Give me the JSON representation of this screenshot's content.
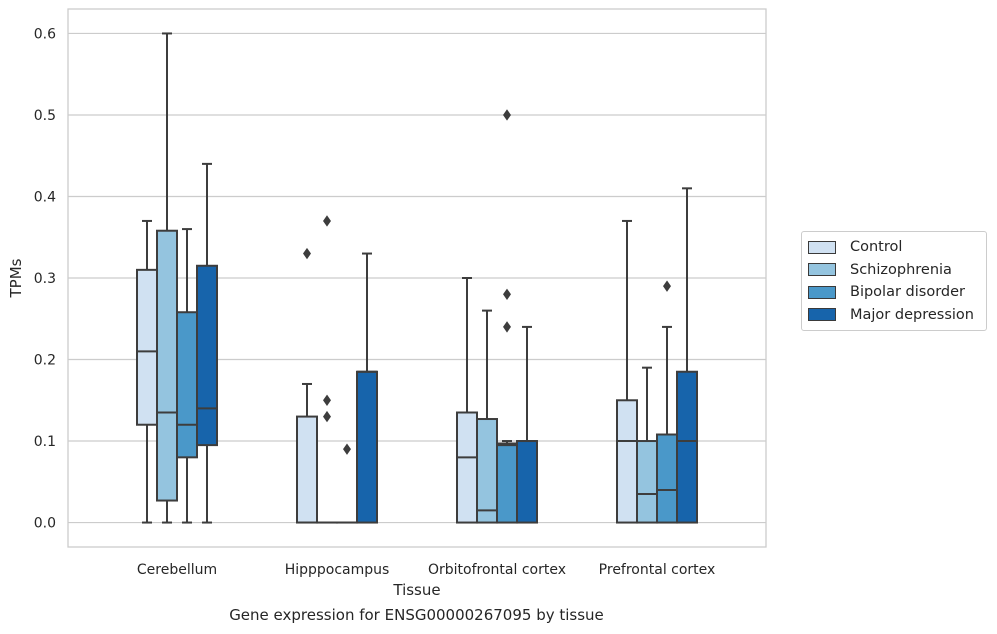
{
  "caption": "Gene expression for ENSG00000267095 by tissue",
  "chart_data": {
    "type": "box",
    "xlabel": "Tissue",
    "ylabel": "TPMs",
    "ylim": [
      -0.03,
      0.63
    ],
    "yticks": [
      0.0,
      0.1,
      0.2,
      0.3,
      0.4,
      0.5,
      0.6
    ],
    "ytick_labels": [
      "0.0",
      "0.1",
      "0.2",
      "0.3",
      "0.4",
      "0.5",
      "0.6"
    ],
    "grid": "horizontal",
    "legend_position": "right-outside",
    "categories": [
      "Cerebellum",
      "Hipppocampus",
      "Orbitofrontal cortex",
      "Prefrontal cortex"
    ],
    "series": [
      {
        "name": "Control",
        "color": "#d0e1f2",
        "boxes": [
          {
            "q1": 0.12,
            "median": 0.21,
            "q3": 0.31,
            "whisker_low": 0.0,
            "whisker_high": 0.37,
            "outliers": []
          },
          {
            "q1": 0.0,
            "median": 0.0,
            "q3": 0.13,
            "whisker_low": 0.0,
            "whisker_high": 0.17,
            "outliers": [
              0.33
            ]
          },
          {
            "q1": 0.0,
            "median": 0.08,
            "q3": 0.135,
            "whisker_low": 0.0,
            "whisker_high": 0.3,
            "outliers": []
          },
          {
            "q1": 0.0,
            "median": 0.1,
            "q3": 0.15,
            "whisker_low": 0.0,
            "whisker_high": 0.37,
            "outliers": []
          }
        ]
      },
      {
        "name": "Schizophrenia",
        "color": "#94c4df",
        "boxes": [
          {
            "q1": 0.027,
            "median": 0.135,
            "q3": 0.358,
            "whisker_low": 0.0,
            "whisker_high": 0.6,
            "outliers": []
          },
          {
            "q1": 0.0,
            "median": 0.0,
            "q3": 0.0,
            "whisker_low": 0.0,
            "whisker_high": 0.0,
            "outliers": [
              0.37,
              0.15,
              0.13
            ]
          },
          {
            "q1": 0.0,
            "median": 0.015,
            "q3": 0.127,
            "whisker_low": 0.0,
            "whisker_high": 0.26,
            "outliers": []
          },
          {
            "q1": 0.0,
            "median": 0.035,
            "q3": 0.1,
            "whisker_low": 0.0,
            "whisker_high": 0.19,
            "outliers": []
          }
        ]
      },
      {
        "name": "Bipolar disorder",
        "color": "#4a98c9",
        "boxes": [
          {
            "q1": 0.08,
            "median": 0.12,
            "q3": 0.258,
            "whisker_low": 0.0,
            "whisker_high": 0.36,
            "outliers": []
          },
          {
            "q1": 0.0,
            "median": 0.0,
            "q3": 0.0,
            "whisker_low": 0.0,
            "whisker_high": 0.0,
            "outliers": [
              0.09
            ]
          },
          {
            "q1": 0.0,
            "median": 0.095,
            "q3": 0.097,
            "whisker_low": 0.0,
            "whisker_high": 0.1,
            "outliers": [
              0.5,
              0.28,
              0.24
            ]
          },
          {
            "q1": 0.0,
            "median": 0.04,
            "q3": 0.108,
            "whisker_low": 0.0,
            "whisker_high": 0.24,
            "outliers": [
              0.29
            ]
          }
        ]
      },
      {
        "name": "Major depression",
        "color": "#1764ab",
        "boxes": [
          {
            "q1": 0.095,
            "median": 0.14,
            "q3": 0.315,
            "whisker_low": 0.0,
            "whisker_high": 0.44,
            "outliers": []
          },
          {
            "q1": 0.0,
            "median": 0.185,
            "q3": 0.185,
            "whisker_low": 0.0,
            "whisker_high": 0.33,
            "outliers": []
          },
          {
            "q1": 0.0,
            "median": 0.1,
            "q3": 0.1,
            "whisker_low": 0.0,
            "whisker_high": 0.24,
            "outliers": []
          },
          {
            "q1": 0.0,
            "median": 0.1,
            "q3": 0.185,
            "whisker_low": 0.0,
            "whisker_high": 0.41,
            "outliers": []
          }
        ]
      }
    ]
  }
}
